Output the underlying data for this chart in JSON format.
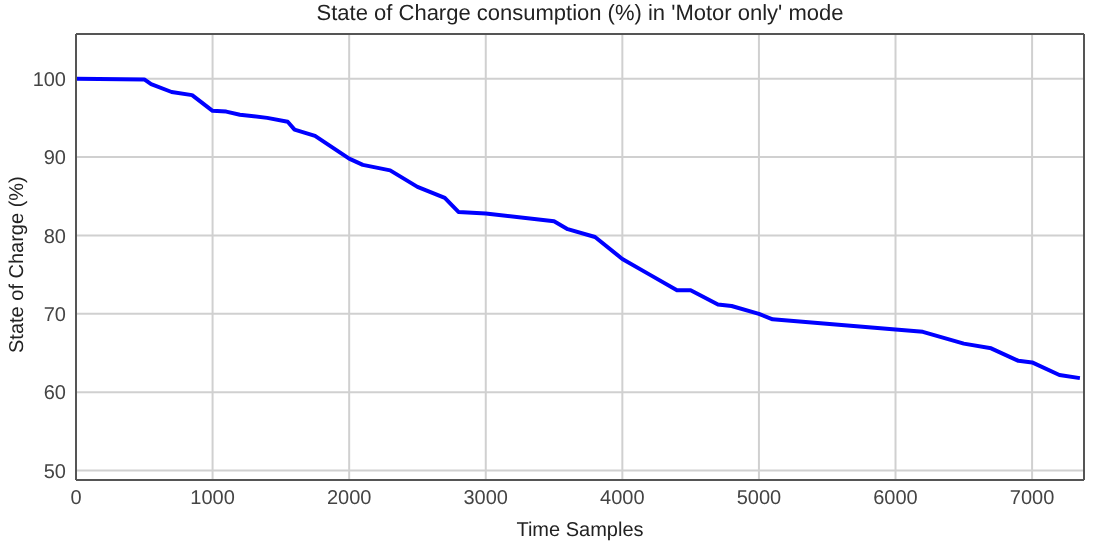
{
  "chart_data": {
    "type": "line",
    "title": "State of Charge consumption (%)  in 'Motor only' mode",
    "xlabel": "Time Samples",
    "ylabel": "State of Charge (%)",
    "x": [
      0,
      500,
      550,
      700,
      850,
      1000,
      1100,
      1200,
      1400,
      1550,
      1600,
      1750,
      2000,
      2100,
      2300,
      2500,
      2700,
      2800,
      3000,
      3500,
      3600,
      3800,
      4000,
      4200,
      4400,
      4500,
      4700,
      4800,
      5000,
      5100,
      6000,
      6200,
      6500,
      6700,
      6900,
      7000,
      7200,
      7350
    ],
    "series": [
      {
        "color": "#0000ff",
        "values": [
          100,
          99.9,
          99.3,
          98.3,
          97.9,
          95.9,
          95.8,
          95.4,
          95.0,
          94.5,
          93.5,
          92.7,
          89.8,
          89.0,
          88.3,
          86.2,
          84.8,
          83.0,
          82.8,
          81.8,
          80.8,
          79.8,
          77.0,
          75.0,
          73.0,
          73.0,
          71.2,
          71.0,
          70.0,
          69.3,
          68.0,
          67.7,
          66.2,
          65.6,
          64.0,
          63.8,
          62.2,
          61.8
        ]
      }
    ],
    "xlim": [
      0,
      7380
    ],
    "ylim": [
      48.8,
      105.7
    ],
    "xticks": [
      0,
      1000,
      2000,
      3000,
      4000,
      5000,
      6000,
      7000
    ],
    "yticks": [
      50,
      60,
      70,
      80,
      90,
      100
    ],
    "grid": true,
    "marker": "none",
    "line_style": "solid"
  }
}
